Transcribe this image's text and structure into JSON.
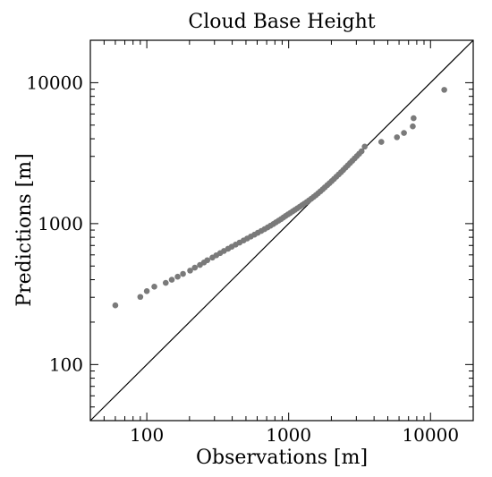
{
  "chart_data": {
    "type": "scatter",
    "title": "Cloud Base Height",
    "xlabel": "Observations [m]",
    "ylabel": "Predictions [m]",
    "xscale": "log",
    "yscale": "log",
    "xlim": [
      40,
      20000
    ],
    "ylim": [
      40,
      20000
    ],
    "xticks": [
      100,
      1000,
      10000
    ],
    "yticks": [
      100,
      1000,
      10000
    ],
    "xtick_labels": [
      "100",
      "1000",
      "10000"
    ],
    "ytick_labels": [
      "100",
      "1000",
      "10000"
    ],
    "grid": false,
    "legend": "none",
    "reference_line": "y = x",
    "point_color": "#7a7a7a",
    "line_color": "#000000",
    "series": [
      {
        "x": [
          60,
          90,
          100,
          113,
          136,
          150,
          165,
          180,
          202,
          218,
          237,
          253,
          267,
          290,
          309,
          329,
          350,
          374,
          397,
          423,
          451,
          481,
          510,
          541,
          574,
          606,
          641,
          676,
          711,
          745,
          780,
          813,
          849,
          884,
          917,
          951,
          989,
          1027,
          1067,
          1107,
          1150,
          1196,
          1241,
          1289,
          1339,
          1390,
          1443,
          1499,
          1556,
          1614,
          1674,
          1737,
          1801,
          1870,
          1940,
          2013,
          2090,
          2169,
          2252,
          2339,
          2426,
          2517,
          2611,
          2709,
          2810,
          2916,
          3026,
          3143,
          3265,
          3436,
          4500,
          5800,
          6500,
          7500,
          7600,
          12500
        ],
        "y": [
          263,
          302,
          332,
          357,
          380,
          400,
          420,
          440,
          464,
          487,
          509,
          530,
          550,
          574,
          596,
          618,
          640,
          663,
          686,
          710,
          734,
          759,
          784,
          810,
          835,
          861,
          887,
          913,
          940,
          967,
          994,
          1021,
          1049,
          1077,
          1105,
          1133,
          1162,
          1191,
          1221,
          1252,
          1284,
          1317,
          1350,
          1385,
          1422,
          1461,
          1502,
          1546,
          1593,
          1643,
          1696,
          1752,
          1811,
          1873,
          1937,
          2005,
          2077,
          2153,
          2232,
          2315,
          2403,
          2495,
          2590,
          2689,
          2793,
          2902,
          3015,
          3134,
          3258,
          3520,
          3800,
          4100,
          4400,
          4900,
          5600,
          8900
        ]
      }
    ]
  }
}
